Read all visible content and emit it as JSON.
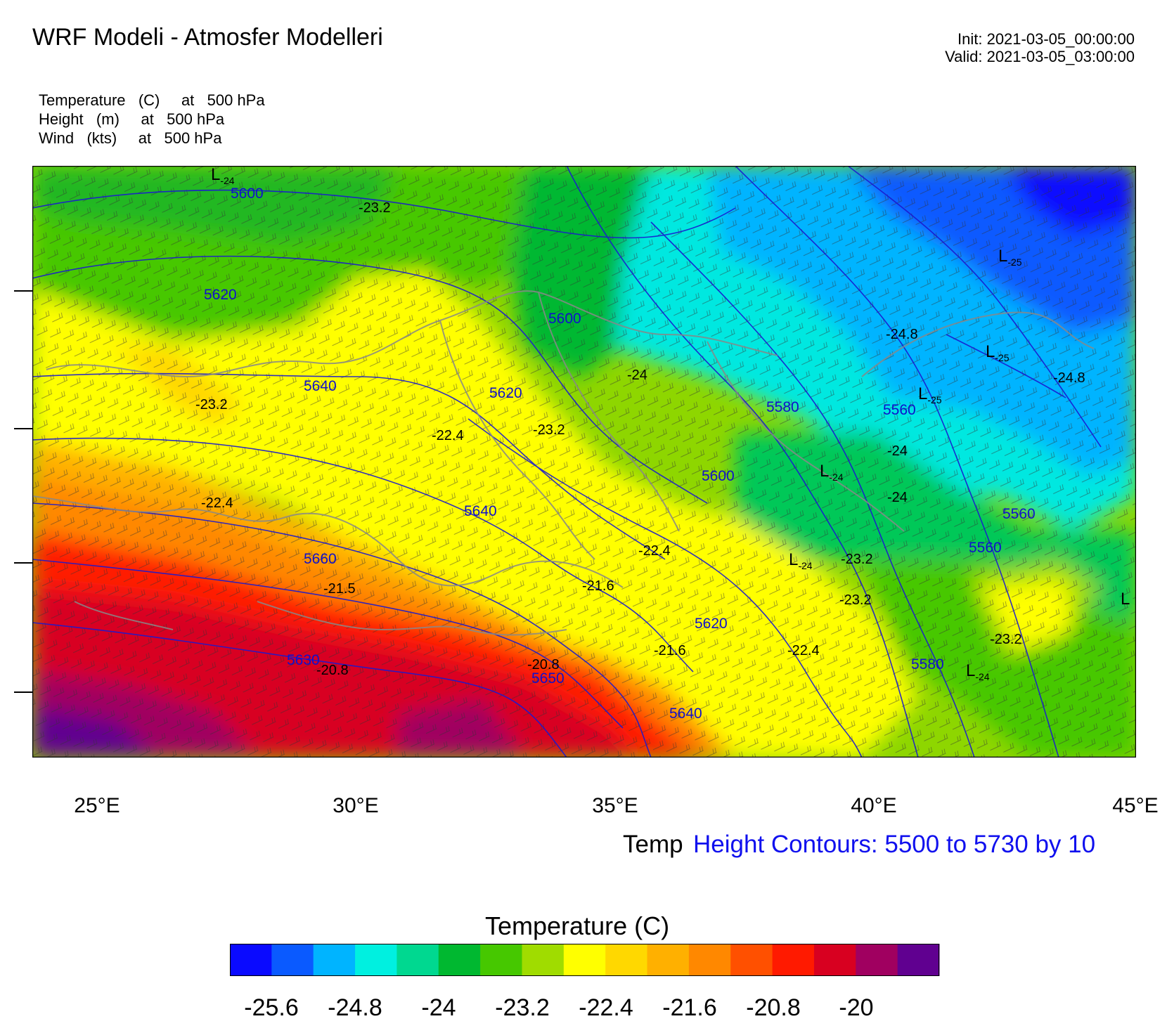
{
  "title": "WRF Modeli - Atmosfer Modelleri",
  "init": "Init: 2021-03-05_00:00:00",
  "valid": "Valid: 2021-03-05_03:00:00",
  "fields": [
    "Temperature   (C)     at   500 hPa",
    "Height   (m)     at   500 hPa",
    "Wind   (kts)     at   500 hPa"
  ],
  "x_ticks": [
    "25°E",
    "30°E",
    "35°E",
    "40°E",
    "45°E"
  ],
  "contour_info": {
    "temp": "Temp",
    "height": "Height Contours: 5500 to 5730 by 10"
  },
  "colorbar": {
    "title": "Temperature  (C)",
    "colors": [
      "#0a0aff",
      "#0a5aff",
      "#00b4ff",
      "#00f0e0",
      "#00d890",
      "#00b830",
      "#46c800",
      "#a0dc00",
      "#ffff00",
      "#ffd800",
      "#ffb000",
      "#ff8800",
      "#ff5000",
      "#ff1a00",
      "#d80020",
      "#a00060",
      "#600090"
    ],
    "labels": [
      "-25.6",
      "-24.8",
      "-24",
      "-23.2",
      "-22.4",
      "-21.6",
      "-20.8",
      "-20"
    ]
  },
  "height_labels": [
    "5600",
    "5620",
    "5600",
    "5640",
    "5620",
    "5580",
    "5560",
    "5600",
    "5640",
    "5660",
    "5620",
    "5560",
    "5560",
    "5580",
    "5630",
    "5650",
    "5640"
  ],
  "temp_labels": [
    "-23.2",
    "-24.8",
    "-24",
    "-24.8",
    "-23.2",
    "-22.4",
    "-23.2",
    "-24",
    "-24",
    "-22.4",
    "-22.4",
    "-23.2",
    "-21.5",
    "-21.6",
    "-23.2",
    "-23.2",
    "-21.6",
    "-22.4",
    "-20.8",
    "-20.8"
  ],
  "low_centers": [
    {
      "symbol": "L",
      "value": "-24"
    },
    {
      "symbol": "L",
      "value": "-25"
    },
    {
      "symbol": "L",
      "value": "-25"
    },
    {
      "symbol": "L",
      "value": "-25"
    },
    {
      "symbol": "L",
      "value": "-24"
    },
    {
      "symbol": "L",
      "value": "-24"
    },
    {
      "symbol": "L",
      "value": "-24"
    },
    {
      "symbol": "L",
      "value": ""
    }
  ]
}
